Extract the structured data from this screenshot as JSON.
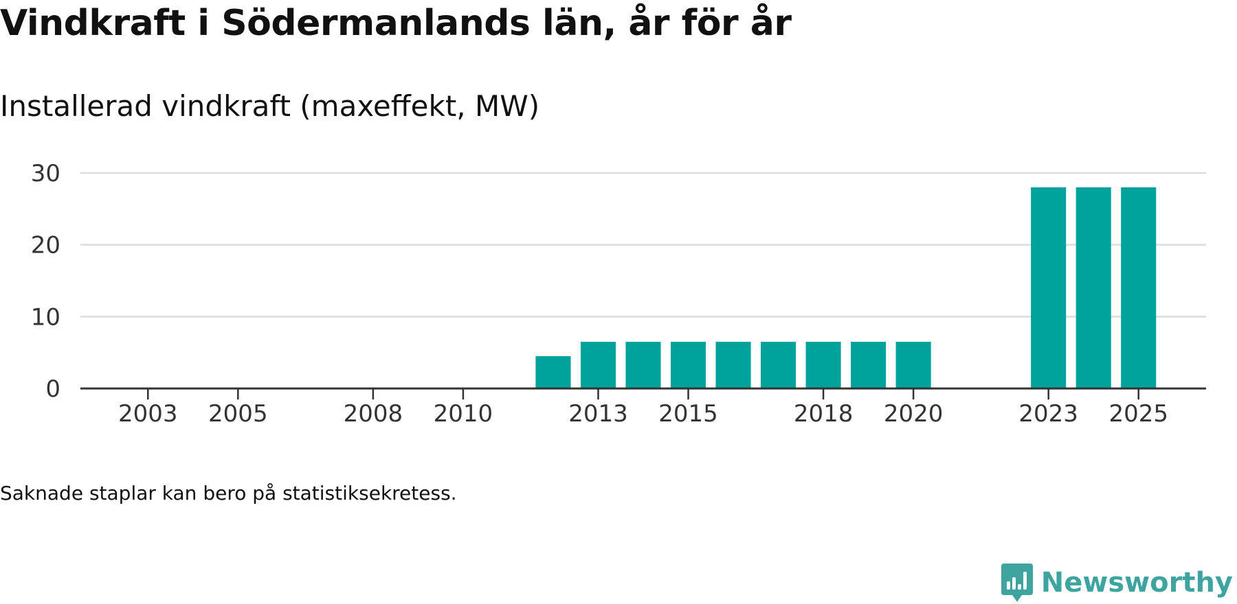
{
  "title": "Vindkraft i Södermanlands län, år för år",
  "subtitle": "Installerad vindkraft (maxeffekt, MW)",
  "note": "Saknade staplar kan bero på statistiksekretess.",
  "brand": {
    "name": "Newsworthy",
    "color": "#3fa4a0",
    "icon": "newsworthy-logo-icon"
  },
  "colors": {
    "bar": "#00a39b",
    "grid": "#dddddd",
    "axis": "#333333",
    "tick_text": "#333333"
  },
  "chart_data": {
    "type": "bar",
    "title": "Installerad vindkraft (maxeffekt, MW)",
    "xlabel": "",
    "ylabel": "",
    "x": [
      2003,
      2004,
      2005,
      2006,
      2007,
      2008,
      2009,
      2010,
      2011,
      2012,
      2013,
      2014,
      2015,
      2016,
      2017,
      2018,
      2019,
      2020,
      2021,
      2022,
      2023,
      2024,
      2025
    ],
    "x_tick_labels": [
      "2003",
      "2005",
      "2008",
      "2010",
      "2013",
      "2015",
      "2018",
      "2020",
      "2023",
      "2025"
    ],
    "x_range": [
      2001.5,
      2026.5
    ],
    "values": [
      0,
      0,
      0,
      0,
      0,
      0,
      0,
      0,
      0,
      4.5,
      6.5,
      6.5,
      6.5,
      6.5,
      6.5,
      6.5,
      6.5,
      6.5,
      0,
      0,
      28,
      28,
      28
    ],
    "y_ticks": [
      0,
      10,
      20,
      30
    ],
    "ylim": [
      0,
      30
    ],
    "grid": true
  }
}
